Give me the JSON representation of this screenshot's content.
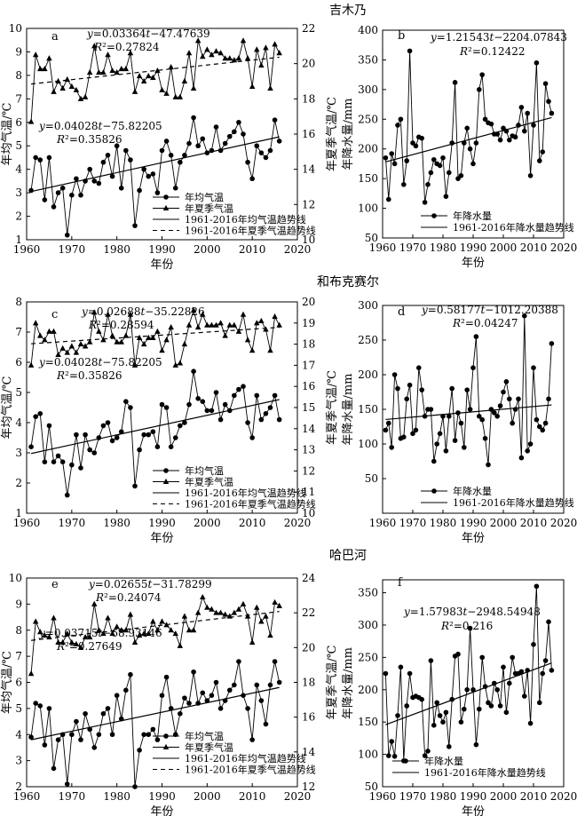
{
  "chart_data": [
    {
      "station": "吉木乃",
      "panel": "a",
      "type": "line",
      "xlabel": "年份",
      "ylabel": "年均气温/℃",
      "y2label": "年夏季气温/℃",
      "xlim": [
        1960,
        2020
      ],
      "xticks": [
        1960,
        1970,
        1980,
        1990,
        2000,
        2010,
        2020
      ],
      "ylim": [
        1,
        10
      ],
      "yticks": [
        1,
        2,
        3,
        4,
        5,
        6,
        7,
        8,
        9,
        10
      ],
      "y2lim": [
        10,
        22
      ],
      "y2ticks": [
        10,
        12,
        14,
        16,
        18,
        20,
        22
      ],
      "eq_summer": "y=0.03364t−47.47639",
      "r2_summer": "R²=0.27824",
      "eq_annual": "y=0.04028t−75.82205",
      "r2_annual": "R²=0.35826",
      "legend": [
        "年均气温",
        "年夏季气温",
        "1961-2016年均气温趋势线",
        "1961-2016年夏季气温趋势线"
      ],
      "x": [
        1961,
        1962,
        1963,
        1964,
        1965,
        1966,
        1967,
        1968,
        1969,
        1970,
        1971,
        1972,
        1973,
        1974,
        1975,
        1976,
        1977,
        1978,
        1979,
        1980,
        1981,
        1982,
        1983,
        1984,
        1985,
        1986,
        1987,
        1988,
        1989,
        1990,
        1991,
        1992,
        1993,
        1994,
        1995,
        1996,
        1997,
        1998,
        1999,
        2000,
        2001,
        2002,
        2003,
        2004,
        2005,
        2006,
        2007,
        2008,
        2009,
        2010,
        2011,
        2012,
        2013,
        2014,
        2015,
        2016
      ],
      "series": [
        {
          "name": "年均气温",
          "marker": "circle",
          "axis": "left",
          "values": [
            3.1,
            4.5,
            4.4,
            2.7,
            4.5,
            2.4,
            3.0,
            3.2,
            1.2,
            2.9,
            3.6,
            2.9,
            3.5,
            4.0,
            3.5,
            3.4,
            4.3,
            4.6,
            3.7,
            5.0,
            3.2,
            4.8,
            4.4,
            1.6,
            3.1,
            4.0,
            3.7,
            3.8,
            3.0,
            4.8,
            5.2,
            4.6,
            3.2,
            4.3,
            4.6,
            5.1,
            6.2,
            5.0,
            5.3,
            4.7,
            4.8,
            5.8,
            4.8,
            5.1,
            5.4,
            5.6,
            6.0,
            5.5,
            4.3,
            3.6,
            5.0,
            4.7,
            4.5,
            4.8,
            6.1,
            5.2
          ]
        },
        {
          "name": "年夏季气温",
          "marker": "triangle",
          "axis": "right",
          "values": [
            16.7,
            20.5,
            19.7,
            19.7,
            20.3,
            18.4,
            19.0,
            18.6,
            19.1,
            18.7,
            18.5,
            18.0,
            18.1,
            19.5,
            21.0,
            19.5,
            19.5,
            20.5,
            19.6,
            19.5,
            19.7,
            19.7,
            20.6,
            18.4,
            19.3,
            19.0,
            19.3,
            19.2,
            19.6,
            18.5,
            18.3,
            19.8,
            18.1,
            18.1,
            19.0,
            20.6,
            18.6,
            21.3,
            20.4,
            20.8,
            20.5,
            20.7,
            20.6,
            20.3,
            20.3,
            20.2,
            20.3,
            21.3,
            20.3,
            18.7,
            20.8,
            19.9,
            20.9,
            18.6,
            21.1,
            20.6
          ]
        }
      ]
    },
    {
      "station": "吉木乃",
      "panel": "b",
      "type": "line",
      "xlabel": "年份",
      "ylabel": "年降水量/mm",
      "xlim": [
        1960,
        2020
      ],
      "xticks": [
        1960,
        1970,
        1980,
        1990,
        2000,
        2010,
        2020
      ],
      "ylim": [
        50,
        400
      ],
      "yticks": [
        50,
        100,
        150,
        200,
        250,
        300,
        350,
        400
      ],
      "eq": "y=1.21543t−2204.07843",
      "r2": "R²=0.12422",
      "legend": [
        "年降水量",
        "1961-2016年降水量趋势线"
      ],
      "x": [
        1961,
        1962,
        1963,
        1964,
        1965,
        1966,
        1967,
        1968,
        1969,
        1970,
        1971,
        1972,
        1973,
        1974,
        1975,
        1976,
        1977,
        1978,
        1979,
        1980,
        1981,
        1982,
        1983,
        1984,
        1985,
        1986,
        1987,
        1988,
        1989,
        1990,
        1991,
        1992,
        1993,
        1994,
        1995,
        1996,
        1997,
        1998,
        1999,
        2000,
        2001,
        2002,
        2003,
        2004,
        2005,
        2006,
        2007,
        2008,
        2009,
        2010,
        2011,
        2012,
        2013,
        2014,
        2015,
        2016
      ],
      "series": [
        {
          "name": "年降水量",
          "marker": "circle",
          "values": [
            185,
            115,
            192,
            175,
            240,
            250,
            140,
            180,
            365,
            210,
            205,
            220,
            218,
            110,
            140,
            160,
            182,
            175,
            172,
            185,
            120,
            160,
            210,
            312,
            150,
            155,
            210,
            235,
            200,
            175,
            210,
            300,
            325,
            250,
            244,
            242,
            225,
            225,
            215,
            235,
            230,
            215,
            222,
            220,
            240,
            270,
            230,
            260,
            155,
            240,
            345,
            180,
            195,
            310,
            280,
            260
          ]
        }
      ]
    },
    {
      "station": "和布克赛尔",
      "panel": "c",
      "type": "line",
      "xlabel": "年份",
      "ylabel": "年均气温/℃",
      "y2label": "年夏季气温/℃",
      "xlim": [
        1960,
        2020
      ],
      "xticks": [
        1960,
        1970,
        1980,
        1990,
        2000,
        2010,
        2020
      ],
      "ylim": [
        1,
        8
      ],
      "yticks": [
        1,
        2,
        3,
        4,
        5,
        6,
        7,
        8
      ],
      "y2lim": [
        10,
        20
      ],
      "y2ticks": [
        10,
        11,
        12,
        13,
        14,
        15,
        16,
        17,
        18,
        19,
        20
      ],
      "eq_summer": "y=0.02688t−35.22826",
      "r2_summer": "R²=0.28594",
      "eq_annual": "y=0.04028t−75.82205",
      "r2_annual": "R²=0.35826",
      "legend": [
        "年均气温",
        "年夏季气温",
        "1961-2016年均气温趋势线",
        "1961-2016年夏季气温趋势线"
      ],
      "x": [
        1961,
        1962,
        1963,
        1964,
        1965,
        1966,
        1967,
        1968,
        1969,
        1970,
        1971,
        1972,
        1973,
        1974,
        1975,
        1976,
        1977,
        1978,
        1979,
        1980,
        1981,
        1982,
        1983,
        1984,
        1985,
        1986,
        1987,
        1988,
        1989,
        1990,
        1991,
        1992,
        1993,
        1994,
        1995,
        1996,
        1997,
        1998,
        1999,
        2000,
        2001,
        2002,
        2003,
        2004,
        2005,
        2006,
        2007,
        2008,
        2009,
        2010,
        2011,
        2012,
        2013,
        2014,
        2015,
        2016
      ],
      "series": [
        {
          "name": "年均气温",
          "marker": "circle",
          "axis": "left",
          "values": [
            3.2,
            4.2,
            4.3,
            2.7,
            3.9,
            2.7,
            2.9,
            2.7,
            1.6,
            2.6,
            3.6,
            2.5,
            3.6,
            3.1,
            3.0,
            3.5,
            3.9,
            4.0,
            3.4,
            3.5,
            3.7,
            4.7,
            4.5,
            1.9,
            3.1,
            3.6,
            3.6,
            3.7,
            3.2,
            4.6,
            4.5,
            3.2,
            3.5,
            3.9,
            4.0,
            4.6,
            5.7,
            4.8,
            4.7,
            4.4,
            4.4,
            5.0,
            4.1,
            4.6,
            4.4,
            4.9,
            5.1,
            5.2,
            4.0,
            3.5,
            4.9,
            4.1,
            4.3,
            4.5,
            4.9,
            4.1
          ]
        },
        {
          "name": "年夏季气温",
          "marker": "triangle",
          "axis": "right",
          "values": [
            17.0,
            19.0,
            18.4,
            18.2,
            18.6,
            18.6,
            17.5,
            17.8,
            17.6,
            17.9,
            17.6,
            18.0,
            17.9,
            18.1,
            19.5,
            18.6,
            18.2,
            19.4,
            18.4,
            18.1,
            18.1,
            18.4,
            19.4,
            17.0,
            18.3,
            18.0,
            18.3,
            18.3,
            18.6,
            17.7,
            18.2,
            18.8,
            17.0,
            17.1,
            18.0,
            18.9,
            19.6,
            18.8,
            19.4,
            18.9,
            18.9,
            18.9,
            19.0,
            18.4,
            18.9,
            18.9,
            18.6,
            19.4,
            18.2,
            17.7,
            19.0,
            19.1,
            18.7,
            17.7,
            19.3,
            18.9
          ]
        }
      ]
    },
    {
      "station": "和布克赛尔",
      "panel": "d",
      "type": "line",
      "xlabel": "年份",
      "ylabel": "年降水量/mm",
      "xlim": [
        1960,
        2020
      ],
      "xticks": [
        1960,
        1970,
        1980,
        1990,
        2000,
        2010,
        2020
      ],
      "ylim": [
        0,
        300
      ],
      "yticks": [
        50,
        100,
        150,
        200,
        250,
        300
      ],
      "eq": "y=0.58177t−1012.20388",
      "r2": "R²=0.04247",
      "legend": [
        "年降水量",
        "1961-2016年降水量趋势线"
      ],
      "x": [
        1961,
        1962,
        1963,
        1964,
        1965,
        1966,
        1967,
        1968,
        1969,
        1970,
        1971,
        1972,
        1973,
        1974,
        1975,
        1976,
        1977,
        1978,
        1979,
        1980,
        1981,
        1982,
        1983,
        1984,
        1985,
        1986,
        1987,
        1988,
        1989,
        1990,
        1991,
        1992,
        1993,
        1994,
        1995,
        1996,
        1997,
        1998,
        1999,
        2000,
        2001,
        2002,
        2003,
        2004,
        2005,
        2006,
        2007,
        2008,
        2009,
        2010,
        2011,
        2012,
        2013,
        2014,
        2015,
        2016
      ],
      "series": [
        {
          "name": "年降水量",
          "marker": "circle",
          "values": [
            120,
            130,
            95,
            200,
            180,
            108,
            110,
            165,
            185,
            115,
            120,
            210,
            178,
            140,
            150,
            150,
            75,
            100,
            115,
            140,
            90,
            140,
            180,
            105,
            145,
            130,
            95,
            178,
            150,
            210,
            255,
            140,
            135,
            108,
            70,
            150,
            145,
            140,
            155,
            175,
            190,
            165,
            130,
            150,
            165,
            80,
            285,
            90,
            100,
            210,
            135,
            125,
            120,
            130,
            165,
            245
          ]
        }
      ]
    },
    {
      "station": "哈巴河",
      "panel": "e",
      "type": "line",
      "xlabel": "年份",
      "ylabel": "年均气温/℃",
      "y2label": "年夏季气温/℃",
      "xlim": [
        1960,
        2020
      ],
      "xticks": [
        1960,
        1970,
        1980,
        1990,
        2000,
        2010,
        2020
      ],
      "ylim": [
        2,
        10
      ],
      "yticks": [
        2,
        3,
        4,
        5,
        6,
        7,
        8,
        9,
        10
      ],
      "y2lim": [
        12,
        24
      ],
      "y2ticks": [
        12,
        14,
        16,
        18,
        20,
        22,
        24
      ],
      "eq_summer": "y=0.02655t−31.78299",
      "r2_summer": "R²=0.24074",
      "eq_annual": "y=0.03715t−68.93146",
      "r2_annual": "R²=0.27649",
      "legend": [
        "年均气温",
        "年夏季气温",
        "1961-2016年均气温趋势线",
        "1961-2016年夏季气温趋势线"
      ],
      "x": [
        1961,
        1962,
        1963,
        1964,
        1965,
        1966,
        1967,
        1968,
        1969,
        1970,
        1971,
        1972,
        1973,
        1974,
        1975,
        1976,
        1977,
        1978,
        1979,
        1980,
        1981,
        1982,
        1983,
        1984,
        1985,
        1986,
        1987,
        1988,
        1989,
        1990,
        1991,
        1992,
        1993,
        1994,
        1995,
        1996,
        1997,
        1998,
        1999,
        2000,
        2001,
        2002,
        2003,
        2004,
        2005,
        2006,
        2007,
        2008,
        2009,
        2010,
        2011,
        2012,
        2013,
        2014,
        2015,
        2016
      ],
      "series": [
        {
          "name": "年均气温",
          "marker": "circle",
          "axis": "left",
          "values": [
            3.9,
            5.2,
            5.1,
            3.6,
            5.0,
            2.7,
            3.8,
            4.0,
            2.1,
            4.0,
            4.5,
            3.8,
            4.8,
            4.2,
            3.5,
            4.0,
            4.8,
            5.0,
            4.0,
            5.5,
            4.6,
            5.7,
            6.3,
            2.0,
            3.4,
            4.0,
            4.0,
            4.2,
            3.8,
            5.5,
            6.2,
            5.0,
            4.0,
            4.8,
            5.4,
            5.2,
            6.4,
            5.2,
            5.6,
            5.3,
            5.5,
            6.0,
            5.0,
            5.3,
            5.7,
            5.9,
            6.8,
            5.5,
            5.0,
            3.8,
            5.9,
            5.3,
            4.4,
            5.9,
            6.8,
            6.0
          ]
        },
        {
          "name": "年夏季气温",
          "marker": "triangle",
          "axis": "right",
          "values": [
            18.5,
            21.5,
            20.9,
            20.7,
            20.6,
            21.7,
            20.3,
            20.3,
            20.8,
            20.3,
            20.2,
            20.0,
            20.6,
            20.6,
            22.5,
            21.0,
            20.8,
            21.7,
            20.8,
            21.2,
            21.0,
            21.0,
            21.9,
            20.3,
            20.7,
            20.8,
            20.8,
            21.5,
            21.0,
            21.5,
            21.3,
            21.0,
            20.8,
            20.1,
            21.8,
            21.0,
            21.0,
            22.0,
            22.9,
            22.3,
            22.2,
            22.0,
            22.0,
            21.9,
            21.8,
            22.0,
            22.2,
            22.5,
            21.8,
            20.3,
            22.3,
            21.5,
            21.8,
            20.7,
            22.6,
            22.4
          ]
        }
      ]
    },
    {
      "station": "哈巴河",
      "panel": "f",
      "type": "line",
      "xlabel": "年份",
      "ylabel": "年降水量/mm",
      "xlim": [
        1960,
        2020
      ],
      "xticks": [
        1960,
        1970,
        1980,
        1990,
        2000,
        2010,
        2020
      ],
      "ylim": [
        50,
        370
      ],
      "yticks": [
        50,
        100,
        150,
        200,
        250,
        300,
        350
      ],
      "eq": "y=1.57983t−2948.54948",
      "r2": "R²=0.216",
      "legend": [
        "年降水量",
        "1961-2016年降水量趋势线"
      ],
      "x": [
        1961,
        1962,
        1963,
        1964,
        1965,
        1966,
        1967,
        1968,
        1969,
        1970,
        1971,
        1972,
        1973,
        1974,
        1975,
        1976,
        1977,
        1978,
        1979,
        1980,
        1981,
        1982,
        1983,
        1984,
        1985,
        1986,
        1987,
        1988,
        1989,
        1990,
        1991,
        1992,
        1993,
        1994,
        1995,
        1996,
        1997,
        1998,
        1999,
        2000,
        2001,
        2002,
        2003,
        2004,
        2005,
        2006,
        2007,
        2008,
        2009,
        2010,
        2011,
        2012,
        2013,
        2014,
        2015,
        2016
      ],
      "series": [
        {
          "name": "年降水量",
          "marker": "circle",
          "values": [
            225,
            98,
            120,
            97,
            160,
            235,
            90,
            175,
            225,
            188,
            190,
            188,
            185,
            98,
            105,
            245,
            145,
            180,
            160,
            150,
            165,
            112,
            185,
            252,
            255,
            150,
            170,
            200,
            295,
            200,
            115,
            170,
            250,
            205,
            180,
            175,
            210,
            200,
            175,
            235,
            165,
            210,
            250,
            225,
            225,
            228,
            190,
            230,
            148,
            270,
            360,
            180,
            225,
            245,
            305,
            230
          ]
        }
      ]
    }
  ],
  "stations": [
    "吉木乃",
    "和布克赛尔",
    "哈巴河"
  ],
  "panel_labels": [
    "a",
    "b",
    "c",
    "d",
    "e",
    "f"
  ]
}
